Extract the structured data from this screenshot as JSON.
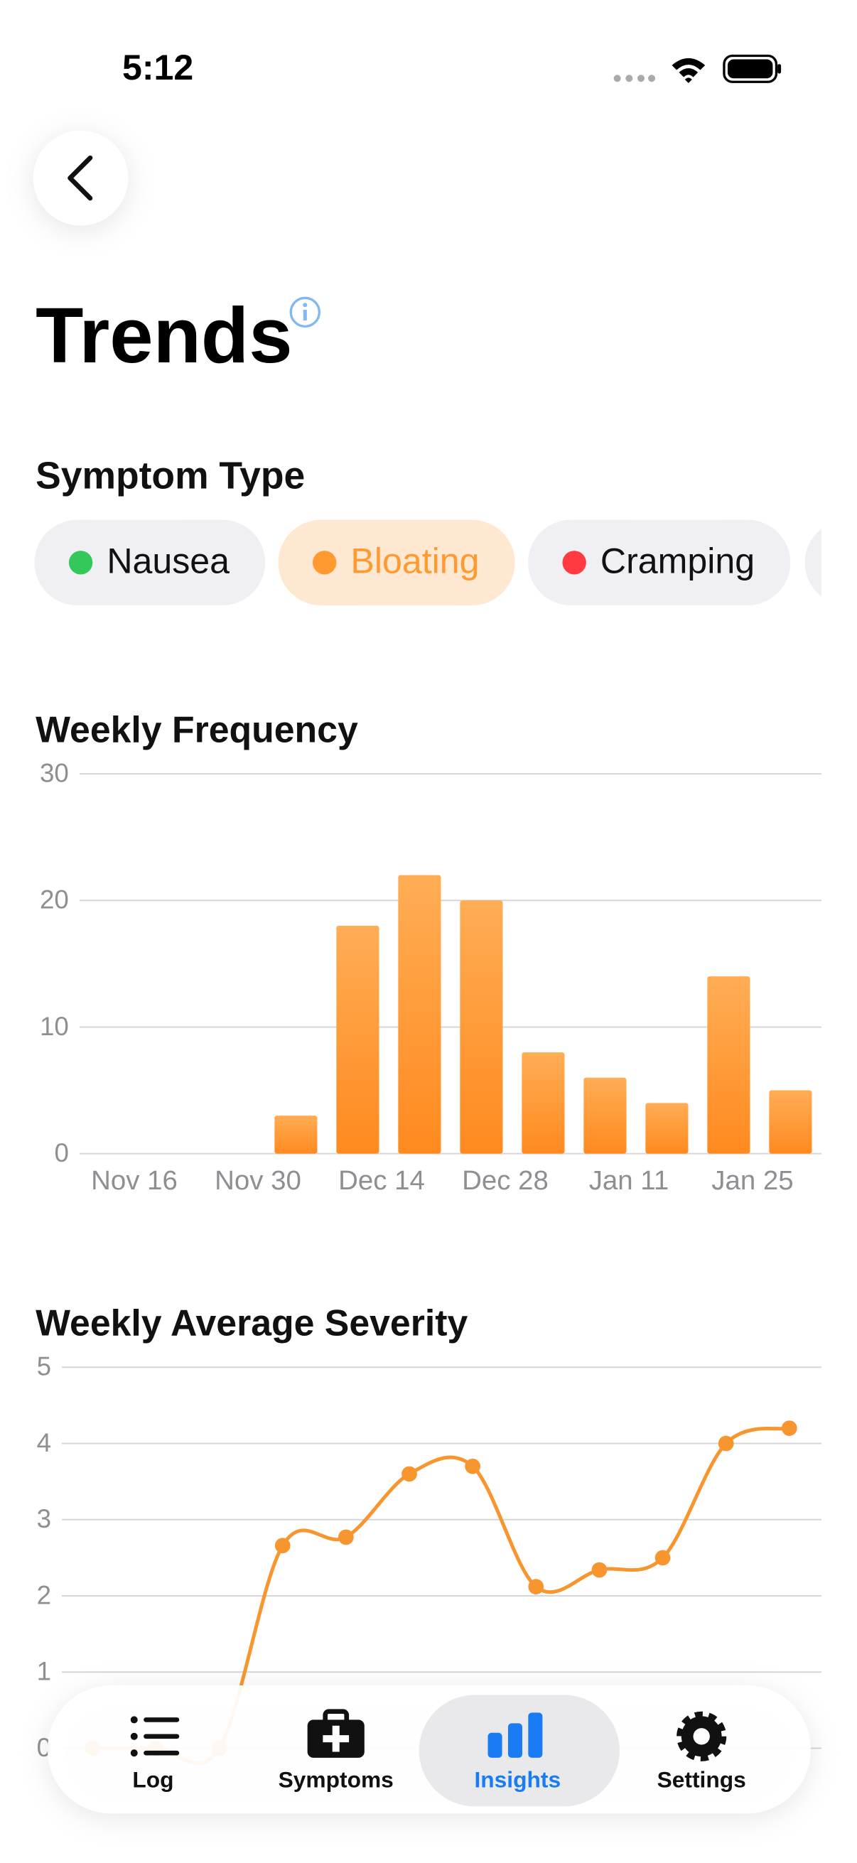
{
  "status_bar": {
    "time": "5:12"
  },
  "header": {
    "title": "Trends"
  },
  "filter": {
    "label": "Symptom Type",
    "chips": [
      {
        "label": "Nausea",
        "color": "#34c759",
        "selected": false
      },
      {
        "label": "Bloating",
        "color": "#ff9a30",
        "selected": true
      },
      {
        "label": "Cramping",
        "color": "#ff3b41",
        "selected": false
      }
    ]
  },
  "chart_data": [
    {
      "type": "bar",
      "title": "Weekly Frequency",
      "categories": [
        "Nov 16",
        null,
        "Nov 30",
        null,
        "Dec 14",
        null,
        "Dec 28",
        null,
        "Jan 11",
        null,
        "Jan 25"
      ],
      "values": [
        0,
        0,
        3,
        18,
        22,
        20,
        8,
        6,
        4,
        14,
        5
      ],
      "color": "#ff9a30",
      "ylim": [
        0,
        30
      ],
      "yticks": [
        0,
        10,
        20,
        30
      ],
      "grid": true
    },
    {
      "type": "line",
      "title": "Weekly Average Severity",
      "values": [
        0,
        0,
        0,
        2.66,
        2.77,
        3.6,
        3.7,
        2.12,
        2.34,
        2.5,
        4.0,
        4.2
      ],
      "color": "#f7962f",
      "ylim": [
        0,
        5
      ],
      "yticks": [
        0,
        1,
        2,
        3,
        4,
        5
      ],
      "grid": true,
      "markers": true
    }
  ],
  "tab_bar": {
    "items": [
      {
        "label": "Log",
        "selected": false
      },
      {
        "label": "Symptoms",
        "selected": false
      },
      {
        "label": "Insights",
        "selected": true
      },
      {
        "label": "Settings",
        "selected": false
      }
    ]
  }
}
